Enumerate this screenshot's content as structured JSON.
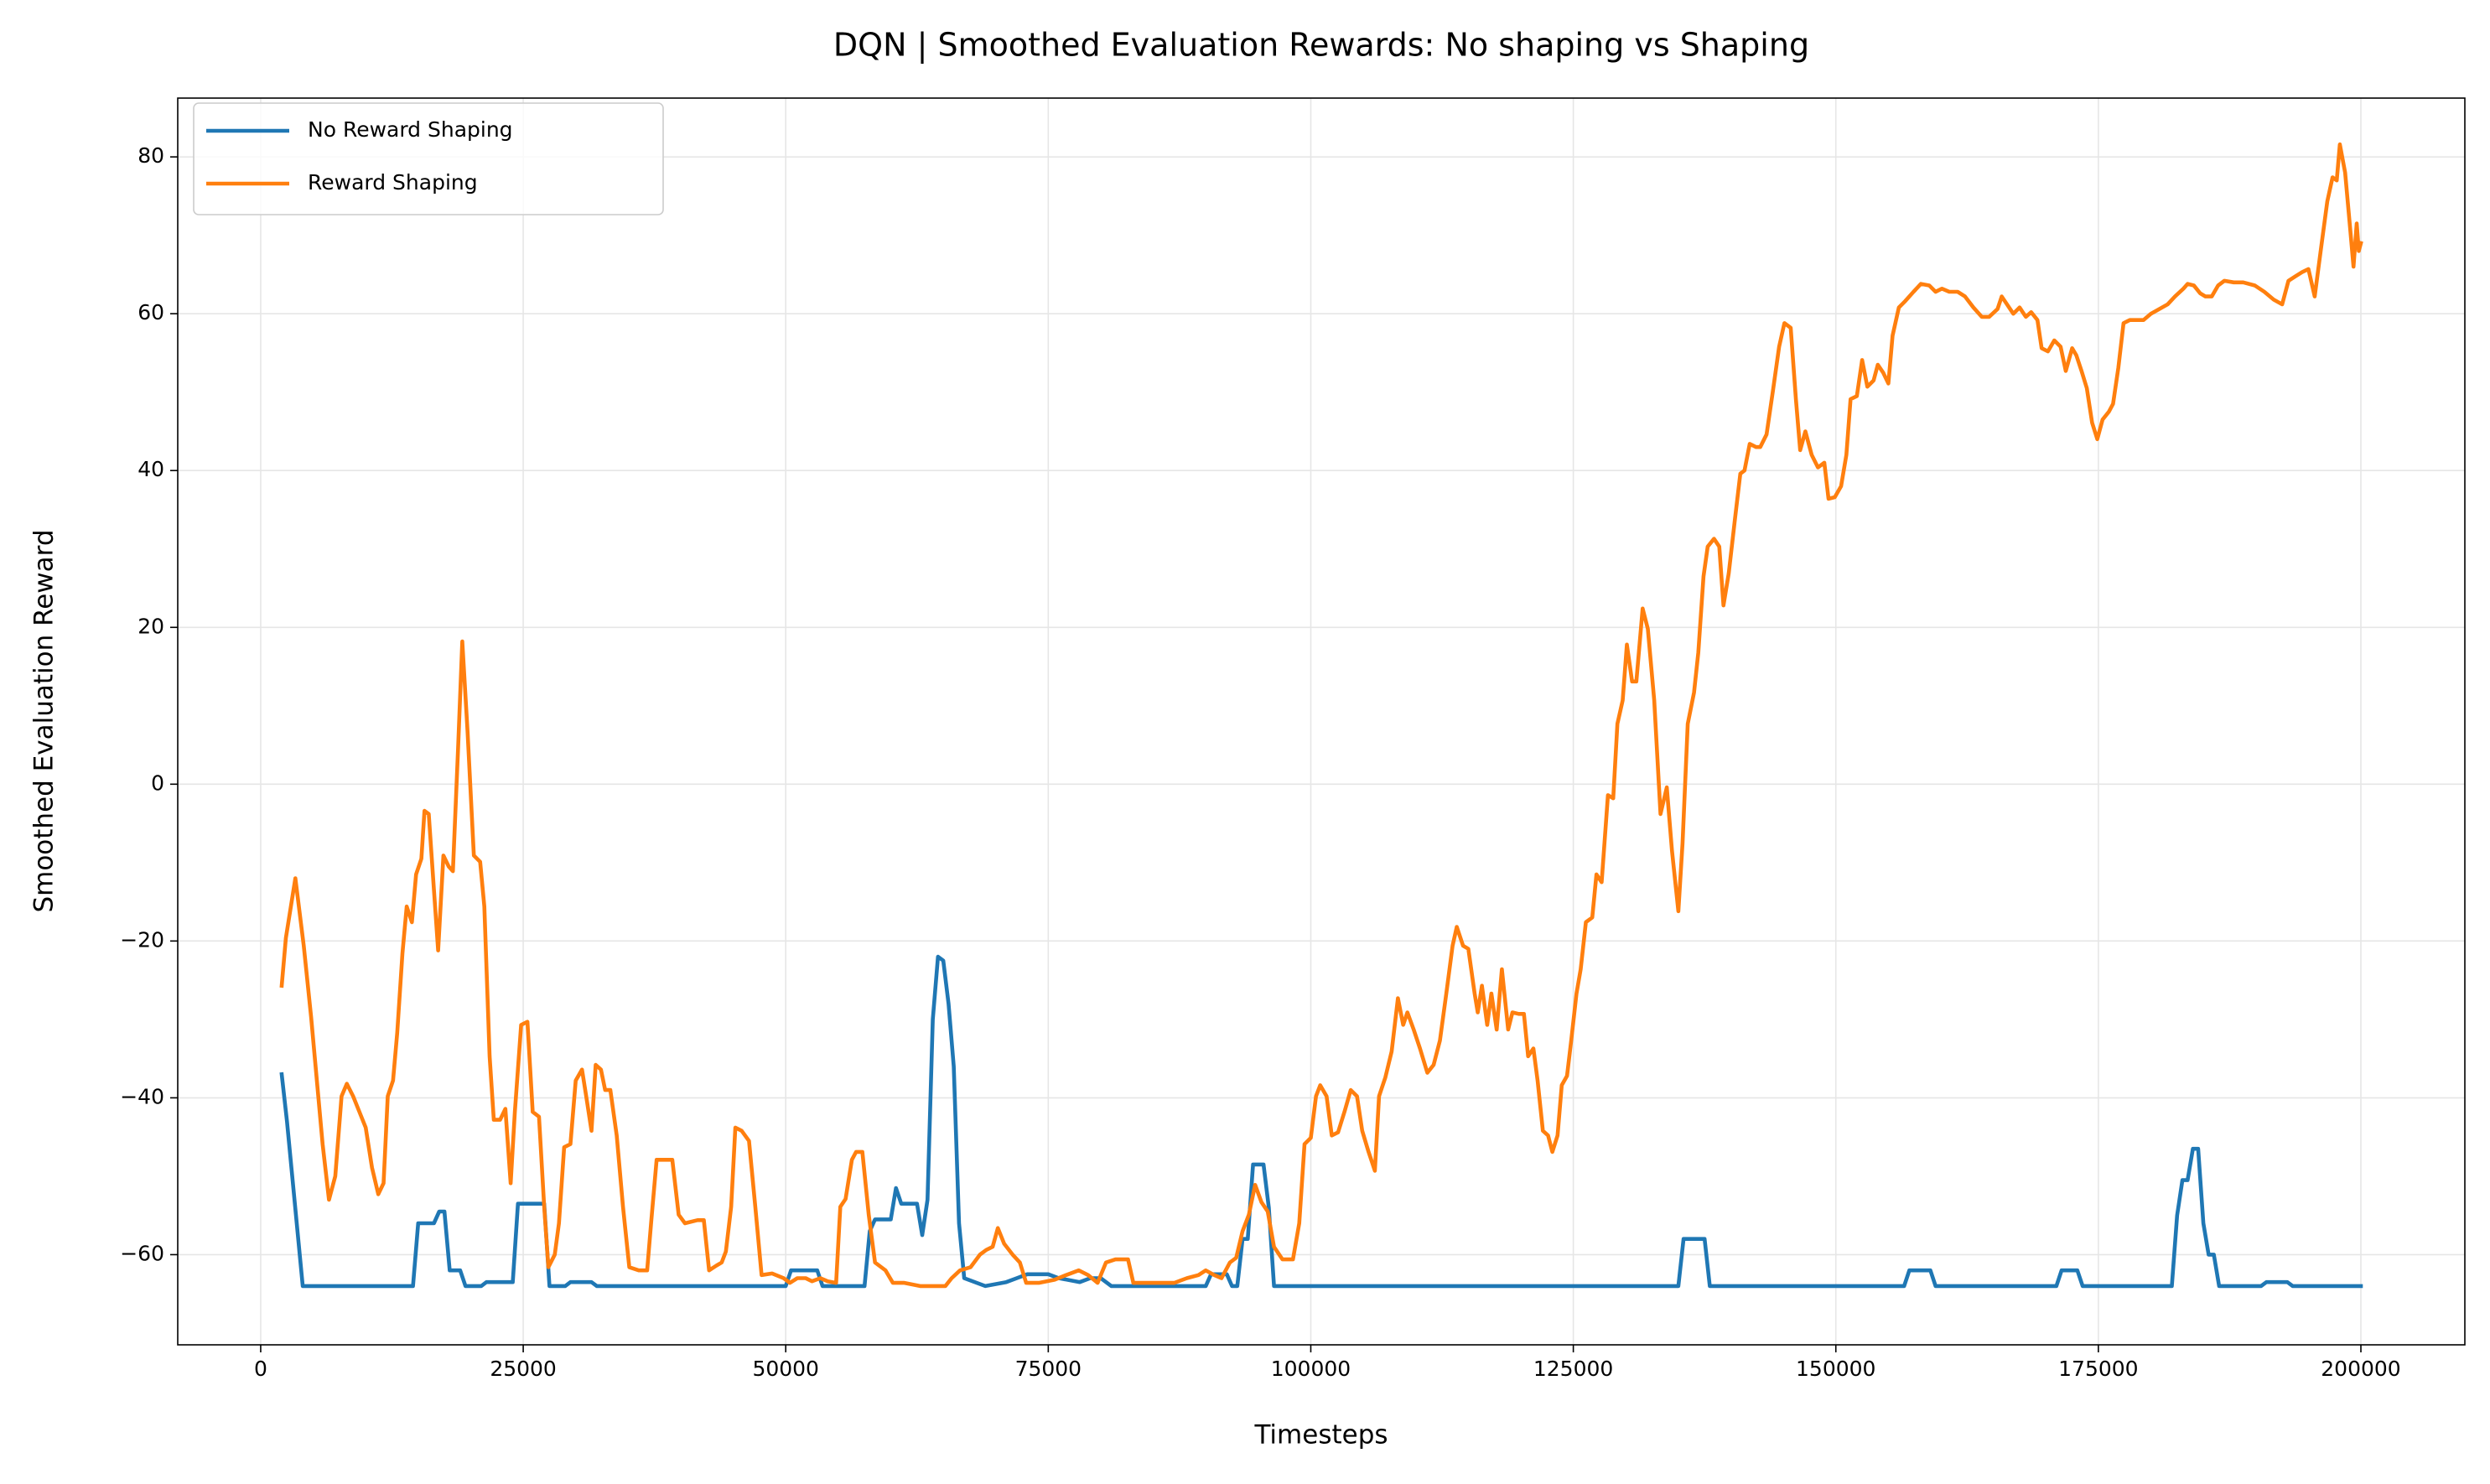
{
  "chart_data": {
    "type": "line",
    "title": "DQN | Smoothed Evaluation Rewards: No shaping vs Shaping",
    "xlabel": "Timesteps",
    "ylabel": "Smoothed Evaluation Reward",
    "xlim": [
      -7900,
      209900
    ],
    "ylim": [
      -71.5,
      87.5
    ],
    "xticks": [
      0,
      25000,
      50000,
      75000,
      100000,
      125000,
      150000,
      175000,
      200000
    ],
    "yticks": [
      {
        "value": -60,
        "label": "−60"
      },
      {
        "value": -40,
        "label": "−40"
      },
      {
        "value": -20,
        "label": "−20"
      },
      0,
      20,
      40,
      60,
      80
    ],
    "grid": true,
    "legend": "upper left",
    "series": [
      {
        "name": "No Reward Shaping",
        "color": "#1f77b4",
        "x": [
          2000,
          2500,
          4000,
          14500,
          15000,
          16500,
          17000,
          17500,
          18000,
          19000,
          19500,
          21000,
          21500,
          24000,
          24500,
          27000,
          27500,
          29000,
          29500,
          31500,
          32000,
          50000,
          50500,
          53000,
          53500,
          57500,
          58000,
          58500,
          60000,
          60500,
          61000,
          62500,
          63000,
          63500,
          64000,
          64500,
          65000,
          65500,
          66000,
          66500,
          67000,
          69000,
          71000,
          72000,
          73000,
          75000,
          76000,
          78000,
          79000,
          80000,
          81000,
          90000,
          90500,
          92000,
          92500,
          93000,
          93500,
          94000,
          94500,
          95500,
          96000,
          96500,
          135000,
          135500,
          137500,
          138000,
          156500,
          157000,
          159000,
          159500,
          171000,
          171500,
          173000,
          173500,
          182000,
          182500,
          183000,
          183500,
          184000,
          184500,
          185000,
          185500,
          186000,
          186500,
          190500,
          191000,
          193000,
          193500,
          200000
        ],
        "values": [
          -37,
          -43,
          -64,
          -64,
          -56,
          -56,
          -54.5,
          -54.5,
          -62,
          -62,
          -64,
          -64,
          -63.5,
          -63.5,
          -53.5,
          -53.5,
          -64,
          -64,
          -63.5,
          -63.5,
          -64,
          -64,
          -62,
          -62,
          -64,
          -64,
          -57,
          -55.5,
          -55.5,
          -51.5,
          -53.5,
          -53.5,
          -57.5,
          -53,
          -30,
          -22,
          -22.5,
          -28,
          -36,
          -56,
          -63,
          -64,
          -63.5,
          -63,
          -62.5,
          -62.5,
          -63,
          -63.5,
          -63,
          -63,
          -64,
          -64,
          -62.5,
          -62.5,
          -64,
          -64,
          -58,
          -58,
          -48.5,
          -48.5,
          -54,
          -64,
          -64,
          -58,
          -58,
          -64,
          -64,
          -62,
          -62,
          -64,
          -64,
          -62,
          -62,
          -64,
          -64,
          -55,
          -50.5,
          -50.5,
          -46.5,
          -46.5,
          -56,
          -60,
          -60,
          -64,
          -64,
          -63.5,
          -63.5,
          -64,
          -64
        ]
      },
      {
        "name": "Reward Shaping",
        "color": "#ff7f0e",
        "x": [
          2000,
          2400,
          3300,
          4100,
          4800,
          5900,
          6500,
          7100,
          7700,
          8200,
          8800,
          9400,
          10000,
          10600,
          11200,
          11700,
          12100,
          12600,
          13000,
          13500,
          13900,
          14400,
          14800,
          15300,
          15600,
          16000,
          16500,
          16900,
          17400,
          17900,
          18300,
          18800,
          19200,
          19700,
          20300,
          20900,
          21300,
          21800,
          22200,
          22800,
          23300,
          23800,
          24200,
          24800,
          25400,
          25900,
          26500,
          27000,
          27400,
          28000,
          28400,
          28900,
          29500,
          30000,
          30600,
          31000,
          31500,
          31900,
          32400,
          32800,
          33300,
          33900,
          34500,
          35100,
          36000,
          36800,
          37200,
          37700,
          38600,
          39200,
          39800,
          40400,
          41600,
          42200,
          42700,
          43400,
          43900,
          44300,
          44800,
          45200,
          45800,
          46500,
          47100,
          47700,
          48700,
          49800,
          50400,
          51100,
          51900,
          52500,
          53300,
          54000,
          54800,
          55200,
          55700,
          56300,
          56700,
          57300,
          57900,
          58500,
          59500,
          60200,
          61300,
          62800,
          65200,
          65800,
          66600,
          67600,
          68500,
          69100,
          69700,
          70200,
          70800,
          71600,
          72300,
          72900,
          74100,
          75600,
          76700,
          77900,
          78800,
          79700,
          80500,
          81400,
          82600,
          83100,
          87000,
          88200,
          89300,
          90000,
          90800,
          91500,
          92300,
          92900,
          93500,
          94100,
          94700,
          95300,
          95900,
          96500,
          97300,
          98300,
          98900,
          99400,
          100000,
          100500,
          100900,
          101500,
          102000,
          102600,
          103200,
          103800,
          104400,
          104900,
          105500,
          106100,
          106500,
          107100,
          107700,
          108300,
          108800,
          109200,
          109800,
          110400,
          111100,
          111700,
          112300,
          112900,
          113500,
          113900,
          114500,
          115000,
          115600,
          115900,
          116300,
          116800,
          117200,
          117700,
          118200,
          118800,
          119200,
          119800,
          120300,
          120700,
          121200,
          121600,
          122100,
          122600,
          123000,
          123500,
          123900,
          124400,
          124800,
          125300,
          125700,
          126200,
          126800,
          127200,
          127700,
          128300,
          128800,
          129200,
          129700,
          130100,
          130600,
          131000,
          131600,
          132100,
          132700,
          133300,
          133900,
          134400,
          135000,
          135400,
          135900,
          136500,
          136900,
          137400,
          137800,
          138400,
          138900,
          139300,
          139800,
          140400,
          140900,
          141300,
          141800,
          142400,
          142800,
          143400,
          144000,
          144600,
          145100,
          145700,
          146200,
          146600,
          147100,
          147700,
          148300,
          148900,
          149300,
          149900,
          150500,
          151000,
          151400,
          152000,
          152500,
          153000,
          153600,
          154000,
          154500,
          155000,
          155400,
          156000,
          156600,
          157400,
          158100,
          158900,
          159500,
          160100,
          160800,
          161600,
          162300,
          163100,
          163900,
          164600,
          165400,
          165800,
          166300,
          166900,
          167500,
          168100,
          168600,
          169200,
          169600,
          170200,
          170800,
          171400,
          171900,
          172500,
          172900,
          173400,
          173900,
          174400,
          174900,
          175400,
          176000,
          176400,
          176900,
          177400,
          178000,
          178700,
          179300,
          180000,
          180800,
          181600,
          182300,
          183100,
          183500,
          184100,
          184700,
          185200,
          185800,
          186400,
          187000,
          187900,
          188800,
          189900,
          190800,
          191700,
          192500,
          193100,
          193800,
          194400,
          195000,
          195600,
          196200,
          196800,
          197300,
          197700,
          198000,
          198500,
          199000,
          199300,
          199600,
          199800,
          200000
        ],
        "values": [
          -25.7,
          -19.6,
          -12,
          -20.6,
          -29.7,
          -45.9,
          -53,
          -50,
          -39.8,
          -38.2,
          -39.8,
          -41.8,
          -43.8,
          -48.9,
          -52.3,
          -50.9,
          -39.8,
          -37.8,
          -31.7,
          -21.6,
          -15.6,
          -17.6,
          -11.5,
          -9.5,
          -3.4,
          -3.8,
          -13.5,
          -21.2,
          -9.1,
          -10.5,
          -11.1,
          4.6,
          18.2,
          6.7,
          -9.1,
          -9.9,
          -15.6,
          -34.7,
          -42.8,
          -42.8,
          -41.4,
          -50.9,
          -41.8,
          -30.7,
          -30.3,
          -41.8,
          -42.4,
          -53.9,
          -61.6,
          -60,
          -56,
          -46.3,
          -45.9,
          -37.8,
          -36.4,
          -39.8,
          -44.2,
          -35.8,
          -36.4,
          -39,
          -39,
          -44.8,
          -53.9,
          -61.6,
          -62,
          -62,
          -55.6,
          -47.9,
          -47.9,
          -47.9,
          -54.9,
          -56,
          -55.6,
          -55.6,
          -62,
          -61.4,
          -61,
          -59.6,
          -53.9,
          -43.8,
          -44.2,
          -45.5,
          -53.9,
          -62.6,
          -62.4,
          -63,
          -63.6,
          -63,
          -63,
          -63.4,
          -63,
          -63.4,
          -63.6,
          -53.9,
          -52.9,
          -47.9,
          -46.9,
          -46.9,
          -54.9,
          -61,
          -62,
          -63.6,
          -63.6,
          -64,
          -64,
          -63,
          -62,
          -61.6,
          -60,
          -59.4,
          -59,
          -56.6,
          -58.6,
          -60,
          -61,
          -63.6,
          -63.6,
          -63.2,
          -62.6,
          -62,
          -62.6,
          -63.6,
          -61,
          -60.6,
          -60.6,
          -63.6,
          -63.6,
          -63,
          -62.6,
          -62,
          -62.6,
          -63,
          -61,
          -60.4,
          -57,
          -54.9,
          -51.1,
          -53.3,
          -54.5,
          -59,
          -60.6,
          -60.6,
          -56,
          -45.9,
          -45.1,
          -39.8,
          -38.4,
          -39.8,
          -44.8,
          -44.4,
          -41.8,
          -39,
          -39.8,
          -44.2,
          -46.9,
          -49.3,
          -39.8,
          -37.4,
          -34.1,
          -27.3,
          -30.7,
          -29.1,
          -31.3,
          -33.7,
          -36.8,
          -35.8,
          -32.7,
          -26.7,
          -20.6,
          -18.2,
          -20.6,
          -21,
          -26.7,
          -29.1,
          -25.7,
          -30.7,
          -26.7,
          -31.3,
          -23.6,
          -31.3,
          -29.1,
          -29.3,
          -29.3,
          -34.7,
          -33.7,
          -37.8,
          -44.2,
          -44.8,
          -46.9,
          -44.8,
          -38.4,
          -37.2,
          -32.7,
          -26.7,
          -23.6,
          -17.6,
          -17,
          -11.5,
          -12.5,
          -1.4,
          -1.8,
          7.7,
          10.7,
          17.8,
          13.1,
          13.1,
          22.4,
          19.8,
          10.7,
          -3.8,
          -0.4,
          -8.5,
          -16.2,
          -7.5,
          7.7,
          11.7,
          16.8,
          26.5,
          30.3,
          31.3,
          30.3,
          22.8,
          26.9,
          33.9,
          39.6,
          40,
          43.4,
          43,
          43,
          44.6,
          50.1,
          55.8,
          58.8,
          58.2,
          49.1,
          42.6,
          45,
          42,
          40.4,
          41,
          36.4,
          36.6,
          38,
          42,
          49.1,
          49.5,
          54.1,
          50.7,
          51.5,
          53.5,
          52.5,
          51.1,
          57.2,
          60.8,
          61.6,
          62.8,
          63.8,
          63.6,
          62.8,
          63.2,
          62.8,
          62.8,
          62.2,
          60.8,
          59.6,
          59.6,
          60.6,
          62.2,
          61.2,
          60,
          60.8,
          59.6,
          60.2,
          59.2,
          55.6,
          55.2,
          56.6,
          55.8,
          52.7,
          55.6,
          54.7,
          52.7,
          50.5,
          46.1,
          44,
          46.5,
          47.5,
          48.5,
          53.1,
          58.8,
          59.2,
          59.2,
          59.2,
          60,
          60.6,
          61.2,
          62.2,
          63.2,
          63.8,
          63.6,
          62.6,
          62.2,
          62.2,
          63.6,
          64.2,
          64,
          64,
          63.6,
          62.8,
          61.8,
          61.2,
          64.2,
          64.8,
          65.3,
          65.7,
          62.2,
          68.3,
          74.3,
          77.4,
          77,
          81.6,
          78,
          70.5,
          66,
          71.5,
          68,
          69
        ]
      }
    ]
  }
}
